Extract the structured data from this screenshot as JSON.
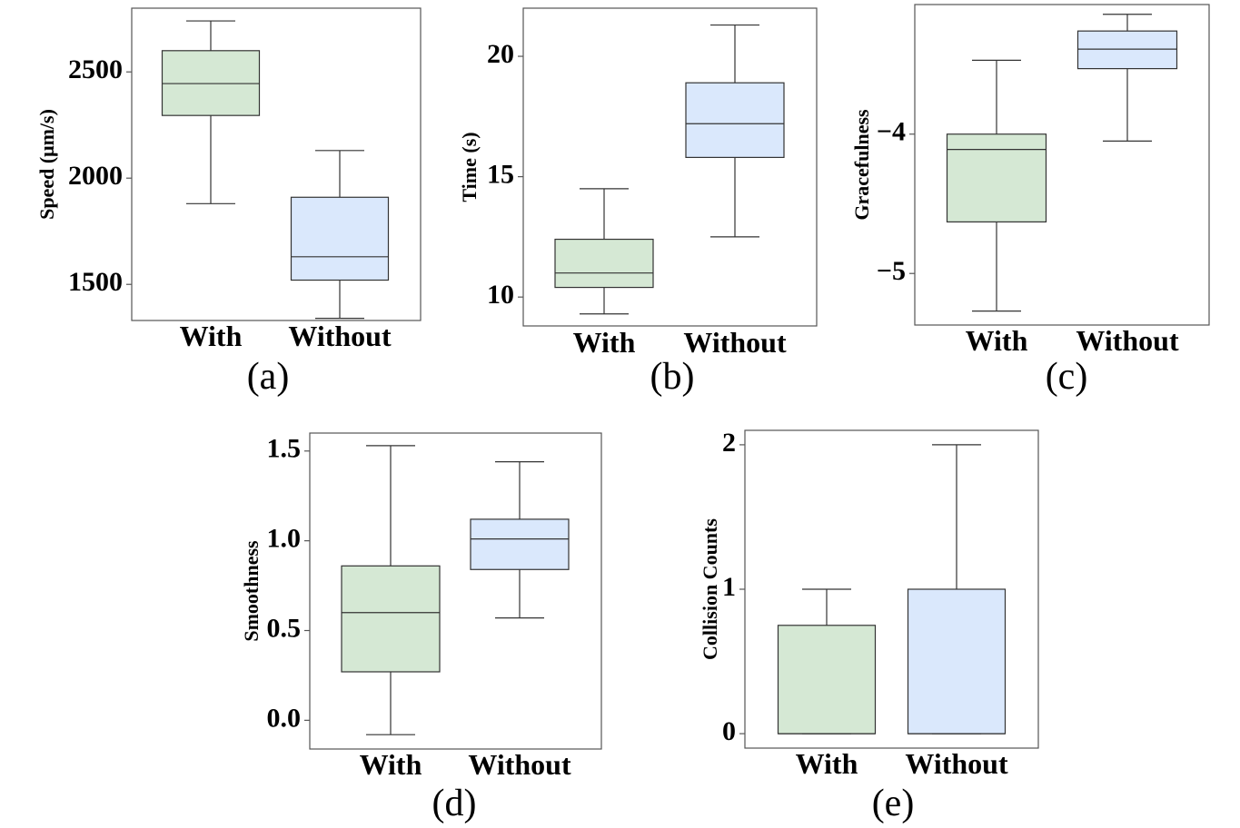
{
  "colors": {
    "with": "#d5e8d4",
    "without": "#dae8fc",
    "line": "#333333"
  },
  "chart_data": [
    {
      "type": "box",
      "panel_label": "(a)",
      "ylabel": "Speed (μm/s)",
      "categories": [
        "With",
        "Without"
      ],
      "yticks": [
        "2500",
        "2000",
        "1500"
      ],
      "ytick_values": [
        2500,
        2000,
        1500
      ],
      "ylim": [
        1330,
        2800
      ],
      "boxes": [
        {
          "name": "With",
          "min": 1880,
          "q1": 2295,
          "median": 2445,
          "q3": 2600,
          "max": 2740
        },
        {
          "name": "Without",
          "min": 1340,
          "q1": 1520,
          "median": 1630,
          "q3": 1910,
          "max": 2130
        }
      ]
    },
    {
      "type": "box",
      "panel_label": "(b)",
      "ylabel": "Time (s)",
      "categories": [
        "With",
        "Without"
      ],
      "yticks": [
        "20",
        "15",
        "10"
      ],
      "ytick_values": [
        20,
        15,
        10
      ],
      "ylim": [
        8.8,
        22
      ],
      "boxes": [
        {
          "name": "With",
          "min": 9.3,
          "q1": 10.4,
          "median": 11.0,
          "q3": 12.4,
          "max": 14.5
        },
        {
          "name": "Without",
          "min": 12.5,
          "q1": 15.8,
          "median": 17.2,
          "q3": 18.9,
          "max": 21.3
        }
      ]
    },
    {
      "type": "box",
      "panel_label": "(c)",
      "ylabel": "Gracefulness",
      "categories": [
        "With",
        "Without"
      ],
      "yticks": [
        "−4",
        "−5"
      ],
      "ytick_values": [
        -4,
        -5
      ],
      "ylim": [
        -5.37,
        -3.07
      ],
      "boxes": [
        {
          "name": "With",
          "min": -5.27,
          "q1": -4.63,
          "median": -4.11,
          "q3": -4.0,
          "max": -3.47
        },
        {
          "name": "Without",
          "min": -4.05,
          "q1": -3.53,
          "median": -3.39,
          "q3": -3.26,
          "max": -3.14
        }
      ]
    },
    {
      "type": "box",
      "panel_label": "(d)",
      "ylabel": "Smoothness",
      "categories": [
        "With",
        "Without"
      ],
      "yticks": [
        "1.5",
        "1.0",
        "0.5",
        "0.0"
      ],
      "ytick_values": [
        1.5,
        1.0,
        0.5,
        0.0
      ],
      "ylim": [
        -0.16,
        1.6
      ],
      "boxes": [
        {
          "name": "With",
          "min": -0.08,
          "q1": 0.27,
          "median": 0.6,
          "q3": 0.86,
          "max": 1.53
        },
        {
          "name": "Without",
          "min": 0.57,
          "q1": 0.84,
          "median": 1.01,
          "q3": 1.12,
          "max": 1.44
        }
      ]
    },
    {
      "type": "box",
      "panel_label": "(e)",
      "ylabel": "Collision Counts",
      "categories": [
        "With",
        "Without"
      ],
      "yticks": [
        "2",
        "1",
        "0"
      ],
      "ytick_values": [
        2,
        1,
        0
      ],
      "ylim": [
        -0.1,
        2.1
      ],
      "boxes": [
        {
          "name": "With",
          "min": 0,
          "q1": 0,
          "median": 0,
          "q3": 0.75,
          "max": 1
        },
        {
          "name": "Without",
          "min": 0,
          "q1": 0,
          "median": 0,
          "q3": 1,
          "max": 2
        }
      ]
    }
  ]
}
